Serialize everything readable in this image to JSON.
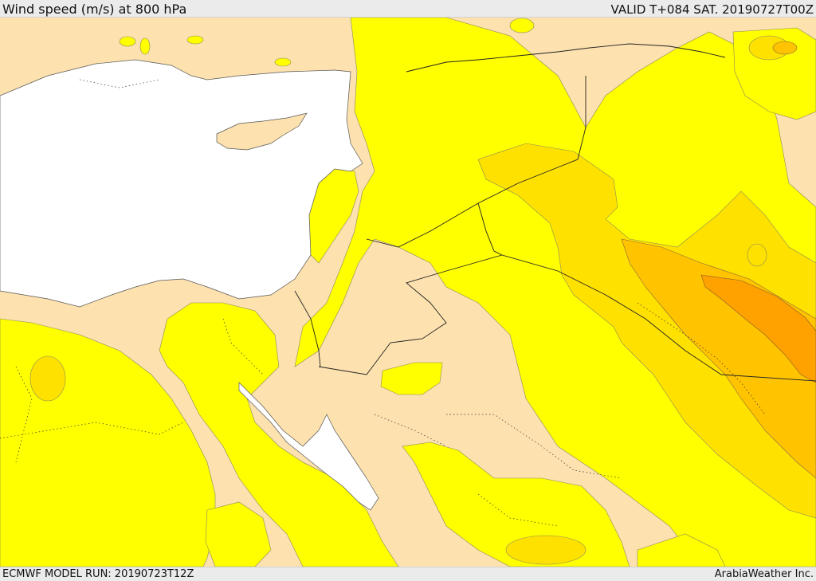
{
  "header": {
    "title": "Wind speed (m/s) at 800 hPa",
    "valid_time": "VALID T+084 SAT. 20190727T00Z"
  },
  "footer": {
    "model_run": "ECMWF MODEL RUN: 20190723T12Z",
    "credit": "ArabiaWeather Inc."
  },
  "colors": {
    "land_calm": "#fde1ae",
    "band_1": "#ffff00",
    "band_2": "#ffe100",
    "band_3": "#ffc300",
    "band_4": "#ffa200",
    "sea": "#ffffff"
  }
}
